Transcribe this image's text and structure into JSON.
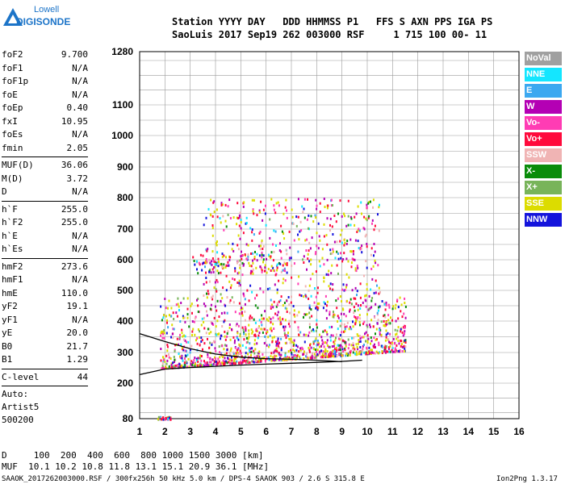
{
  "logo": {
    "line1": "Lowell",
    "line2": "DIGISONDE"
  },
  "header": {
    "line1": "Station YYYY DAY   DDD HHMMSS P1   FFS S AXN PPS IGA PS",
    "line2": "SaoLuis 2017 Sep19 262 003000 RSF     1 715 100 00- 11"
  },
  "params": {
    "group1": [
      {
        "key": "foF2",
        "val": "9.700"
      },
      {
        "key": "foF1",
        "val": "N/A"
      },
      {
        "key": "foF1p",
        "val": "N/A"
      },
      {
        "key": "foE",
        "val": "N/A"
      },
      {
        "key": "foEp",
        "val": "0.40"
      },
      {
        "key": "fxI",
        "val": "10.95"
      },
      {
        "key": "foEs",
        "val": "N/A"
      },
      {
        "key": "fmin",
        "val": "2.05"
      }
    ],
    "group2": [
      {
        "key": "MUF(D)",
        "val": "36.06"
      },
      {
        "key": "M(D)",
        "val": "3.72"
      },
      {
        "key": "D",
        "val": "N/A"
      }
    ],
    "group3": [
      {
        "key": "h`F",
        "val": "255.0"
      },
      {
        "key": "h`F2",
        "val": "255.0"
      },
      {
        "key": "h`E",
        "val": "N/A"
      },
      {
        "key": "h`Es",
        "val": "N/A"
      }
    ],
    "group4": [
      {
        "key": "hmF2",
        "val": "273.6"
      },
      {
        "key": "hmF1",
        "val": "N/A"
      },
      {
        "key": "hmE",
        "val": "110.0"
      },
      {
        "key": "yF2",
        "val": "19.1"
      },
      {
        "key": "yF1",
        "val": "N/A"
      },
      {
        "key": "yE",
        "val": "20.0"
      },
      {
        "key": "B0",
        "val": "21.7"
      },
      {
        "key": "B1",
        "val": "1.29"
      }
    ],
    "group5": [
      {
        "key": "C-level",
        "val": "44"
      }
    ],
    "auto": [
      "Auto:",
      "Artist5",
      "500200"
    ]
  },
  "legend": [
    {
      "label": "NoVal",
      "color": "#a0a0a0"
    },
    {
      "label": "NNE",
      "color": "#14e6ff"
    },
    {
      "label": "E",
      "color": "#3ca8f0"
    },
    {
      "label": "W",
      "color": "#b400b4"
    },
    {
      "label": "Vo-",
      "color": "#ff3cb4"
    },
    {
      "label": "Vo+",
      "color": "#ff0a3c"
    },
    {
      "label": "SSW",
      "color": "#f0b4b4"
    },
    {
      "label": "X-",
      "color": "#0a8c0a"
    },
    {
      "label": "X+",
      "color": "#78b45a"
    },
    {
      "label": "SSE",
      "color": "#dcdc00"
    },
    {
      "label": "NNW",
      "color": "#1414dc"
    }
  ],
  "footer": {
    "line1": "D     100  200  400  600  800 1000 1500 3000 [km]",
    "line2": "MUF  10.1 10.2 10.8 11.8 13.1 15.1 20.9 36.1 [MHz]",
    "line3": "SAAOK_2017262003000.RSF / 300fx256h 50 kHz 5.0 km / DPS-4 SAAOK 903 / 2.6 S 315.8 E",
    "version": "Ion2Png 1.3.17"
  },
  "chart_data": {
    "type": "scatter",
    "title": "",
    "xlabel": "",
    "ylabel": "",
    "xlim": [
      1,
      16
    ],
    "ylim": [
      80,
      1280
    ],
    "xticks": [
      1,
      2,
      3,
      4,
      5,
      6,
      7,
      8,
      9,
      10,
      11,
      12,
      13,
      14,
      15,
      16
    ],
    "yticks": [
      80,
      200,
      300,
      400,
      500,
      600,
      700,
      800,
      900,
      1000,
      1100,
      1280
    ],
    "y_scale": "nonlinear (height axis)",
    "grid": true,
    "traces": [
      {
        "name": "",
        "x": [
          1.0,
          2.0,
          3.0,
          4.0,
          5.0,
          6.0,
          7.0,
          8.0,
          9.0,
          9.8
        ],
        "y": [
          228,
          246,
          251,
          255,
          259,
          262,
          265,
          268,
          271,
          275
        ]
      },
      {
        "name": "",
        "x": [
          1.0,
          2.0,
          3.0,
          4.0,
          5.0,
          6.0,
          7.0,
          8.0,
          9.0
        ],
        "y": [
          360,
          335,
          312,
          295,
          285,
          280,
          278,
          275,
          270
        ]
      }
    ],
    "echo_regions": [
      {
        "x": [
          1.7,
          2.2
        ],
        "y": [
          80,
          90
        ]
      },
      {
        "x": [
          1.8,
          11.5
        ],
        "y": [
          240,
          480
        ]
      },
      {
        "x": [
          3.0,
          7.0
        ],
        "y": [
          560,
          620
        ]
      },
      {
        "x": [
          3.5,
          10.5
        ],
        "y": [
          480,
          800
        ]
      }
    ]
  }
}
